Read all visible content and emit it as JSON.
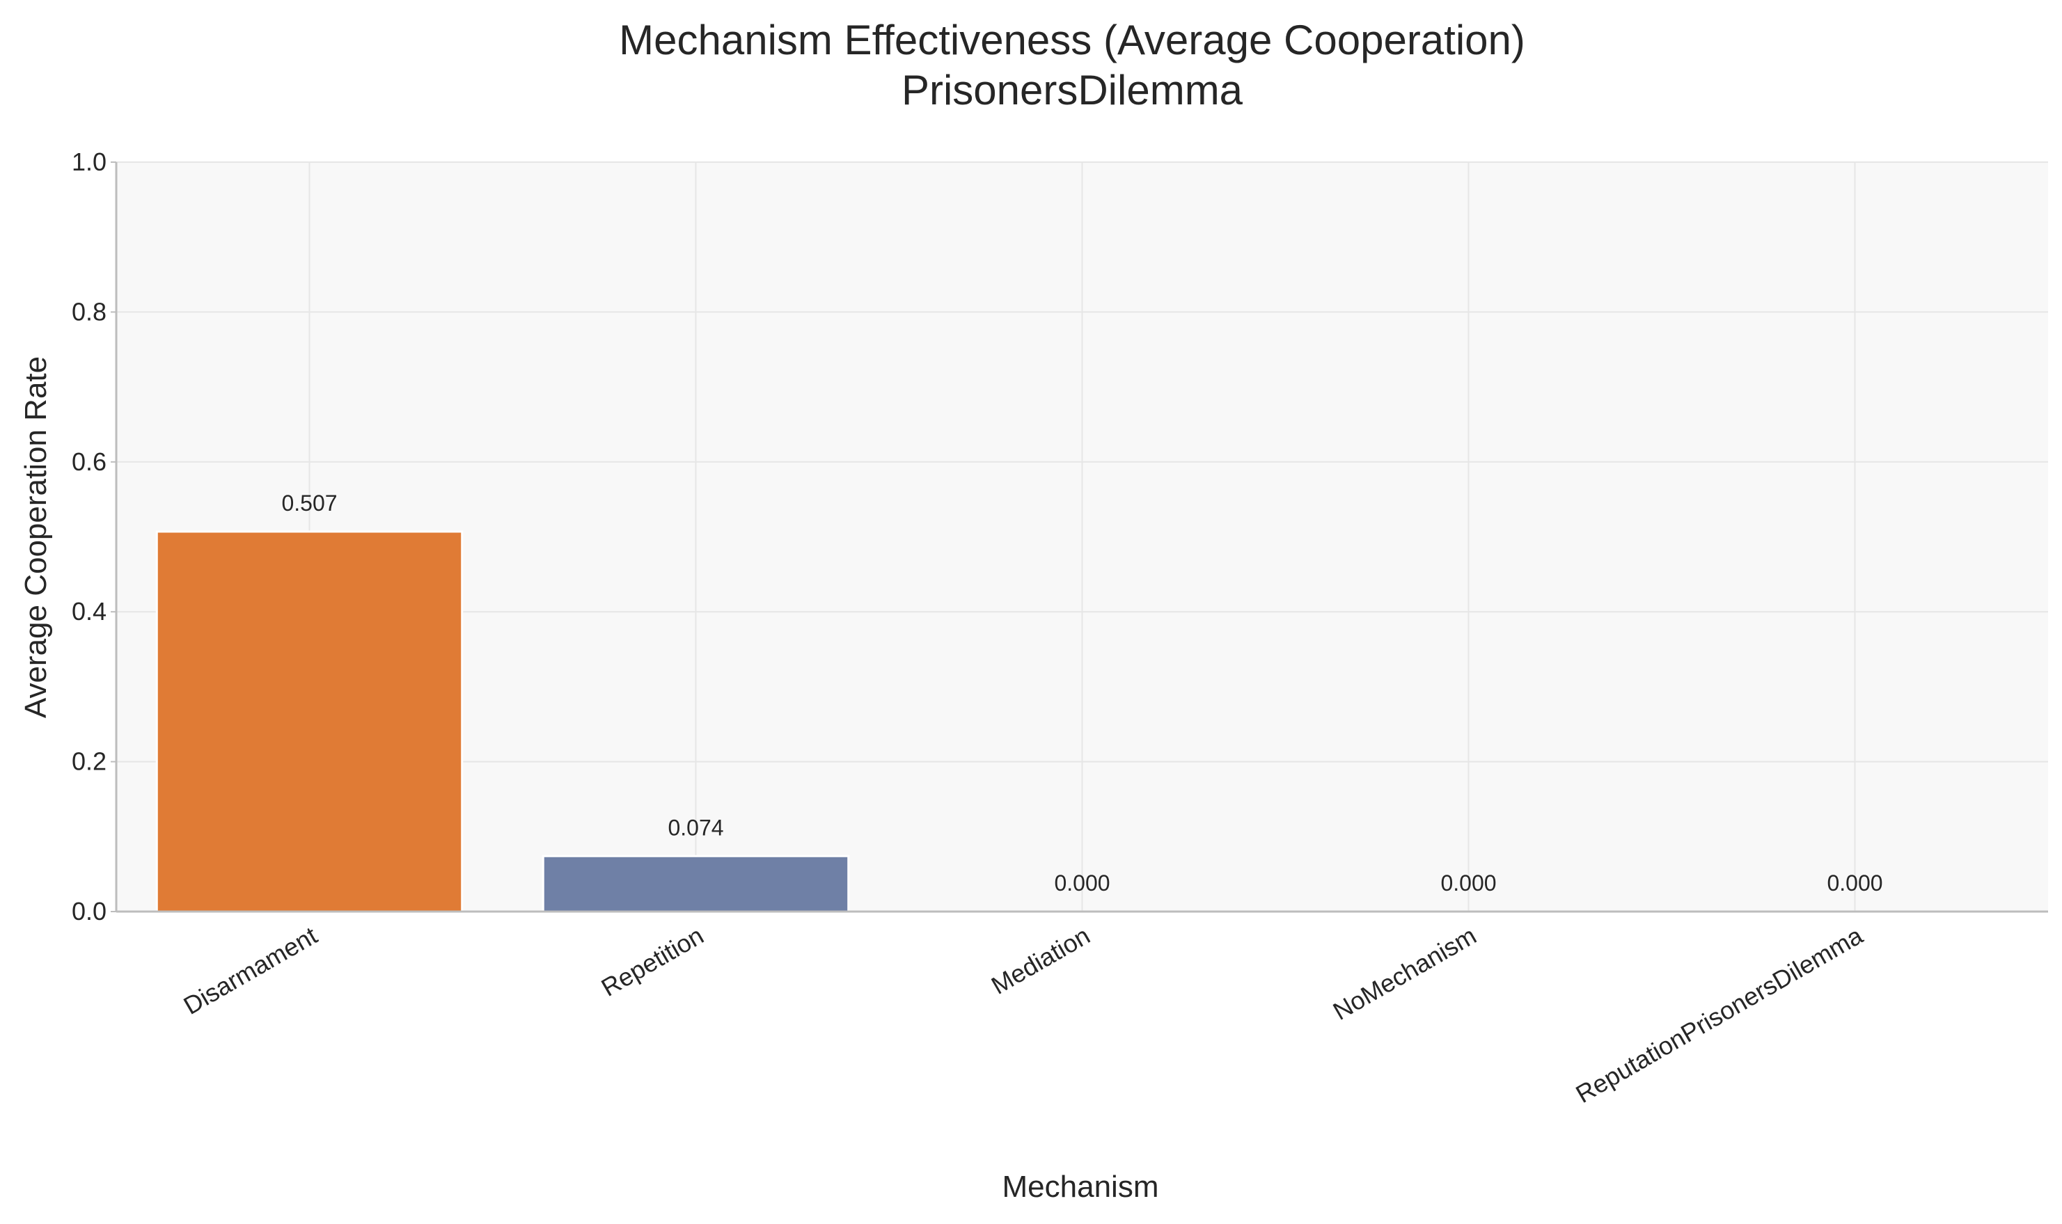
{
  "chart_data": {
    "type": "bar",
    "title": "Mechanism Effectiveness (Average Cooperation)",
    "subtitle": "PrisonersDilemma",
    "xlabel": "Mechanism",
    "ylabel": "Average Cooperation Rate",
    "categories": [
      "Disarmament",
      "Repetition",
      "Mediation",
      "NoMechanism",
      "ReputationPrisonersDilemma"
    ],
    "values": [
      0.507,
      0.074,
      0.0,
      0.0,
      0.0
    ],
    "value_labels": [
      "0.507",
      "0.074",
      "0.000",
      "0.000",
      "0.000"
    ],
    "ylim": [
      0,
      1.0
    ],
    "yticks": [
      "0.0",
      "0.2",
      "0.4",
      "0.6",
      "0.8",
      "1.0"
    ],
    "grid": true,
    "bar_colors": [
      "#e07b35",
      "#6f80a6",
      "#7f7f7f",
      "#7f7f7f",
      "#7f7f7f"
    ],
    "colors": {
      "plot_background": "#f8f8f8",
      "grid": "#e6e6e6",
      "axis": "#bdbdbd",
      "text": "#262626"
    }
  }
}
